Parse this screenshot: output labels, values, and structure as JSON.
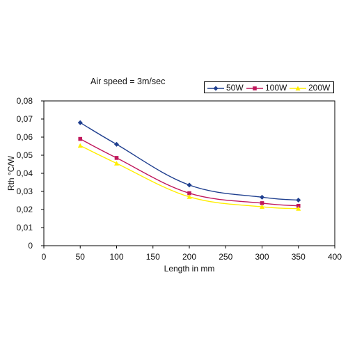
{
  "chart_data": {
    "type": "line",
    "title": "",
    "subtitle": "Air speed = 3m/sec",
    "xlabel": "Length in mm",
    "ylabel": "Rth °C/W",
    "xlim": [
      0,
      400
    ],
    "ylim": [
      0,
      0.08
    ],
    "x_ticks": [
      "0",
      "50",
      "100",
      "150",
      "200",
      "250",
      "300",
      "350",
      "400"
    ],
    "y_ticks": [
      "0",
      "0,01",
      "0,02",
      "0,03",
      "0,04",
      "0,05",
      "0,06",
      "0,07",
      "0,08"
    ],
    "grid": false,
    "legend_position": "top-right",
    "x": [
      50,
      100,
      200,
      300,
      350
    ],
    "series": [
      {
        "name": "50W",
        "values": [
          0.068,
          0.056,
          0.0335,
          0.0268,
          0.0252
        ],
        "color": "#1f3f8f",
        "marker": "diamond"
      },
      {
        "name": "100W",
        "values": [
          0.059,
          0.0485,
          0.029,
          0.0235,
          0.022
        ],
        "color": "#c0185c",
        "marker": "square"
      },
      {
        "name": "200W",
        "values": [
          0.0553,
          0.0455,
          0.027,
          0.0215,
          0.0205
        ],
        "color": "#ffee00",
        "marker": "triangle"
      }
    ]
  }
}
